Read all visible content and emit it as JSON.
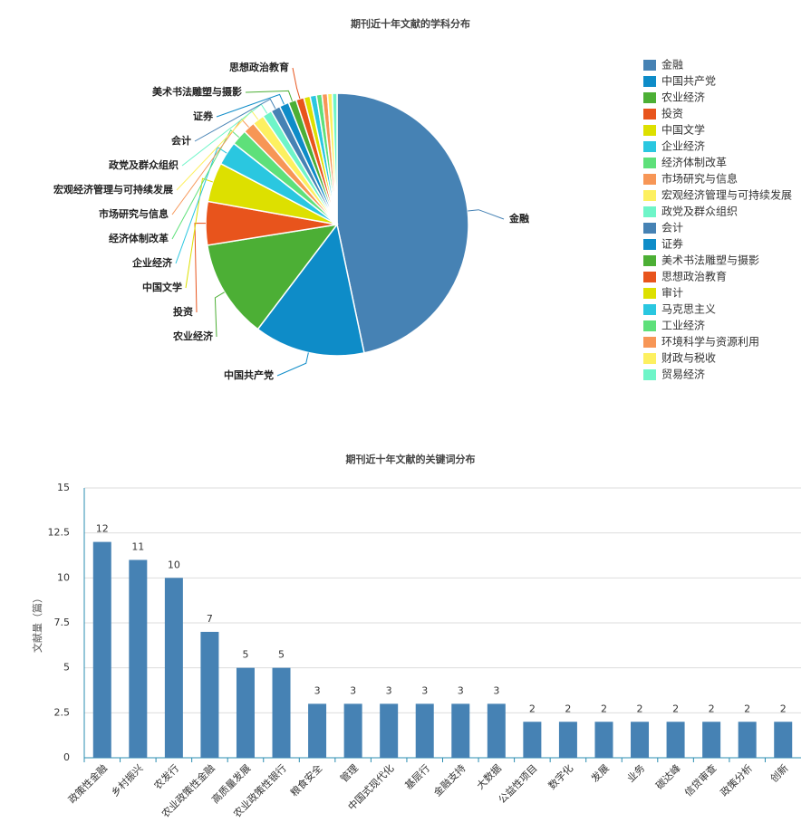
{
  "chart_data": [
    {
      "type": "pie",
      "title": "期刊近十年文献的学科分布",
      "categories": [
        "金融",
        "中国共产党",
        "农业经济",
        "投资",
        "中国文学",
        "企业经济",
        "经济体制改革",
        "市场研究与信息",
        "宏观经济管理与可持续发展",
        "政党及群众组织",
        "会计",
        "证券",
        "美术书法雕塑与摄影",
        "思想政治教育",
        "审计",
        "马克思主义",
        "工业经济",
        "环境科学与资源利用",
        "财政与税收",
        "贸易经济"
      ],
      "values": [
        48,
        14,
        12.5,
        5.5,
        5,
        3,
        2,
        1.5,
        1.5,
        1.2,
        1.2,
        1.2,
        1,
        1,
        0.8,
        0.8,
        0.7,
        0.7,
        0.6,
        0.6
      ],
      "colors": [
        "#4682b4",
        "#0e8cc8",
        "#4caf35",
        "#e8541c",
        "#dde000",
        "#2ac7e0",
        "#5ee07a",
        "#f79656",
        "#fdf060",
        "#6ef5c8",
        "#4682b4",
        "#0e8cc8",
        "#4caf35",
        "#e8541c",
        "#dde000",
        "#2ac7e0",
        "#5ee07a",
        "#f79656",
        "#fdf060",
        "#6ef5c8"
      ],
      "legend": "right"
    },
    {
      "type": "bar",
      "title": "期刊近十年文献的关键词分布",
      "y_label": "文献量（篇）",
      "categories": [
        "政策性金融",
        "乡村振兴",
        "农发行",
        "农业政策性金融",
        "高质量发展",
        "农业政策性银行",
        "粮食安全",
        "管理",
        "中国式现代化",
        "基层行",
        "金融支持",
        "大数据",
        "公益性项目",
        "数字化",
        "发展",
        "业务",
        "碳达峰",
        "信贷审查",
        "政策分析",
        "创新"
      ],
      "values": [
        12,
        11,
        10,
        7,
        5,
        5,
        3,
        3,
        3,
        3,
        3,
        3,
        2,
        2,
        2,
        2,
        2,
        2,
        2,
        2
      ],
      "color": "#4682b4",
      "ylim": [
        0,
        15
      ],
      "yticks": [
        0,
        2.5,
        5,
        7.5,
        10,
        12.5,
        15
      ],
      "grid": true
    }
  ]
}
